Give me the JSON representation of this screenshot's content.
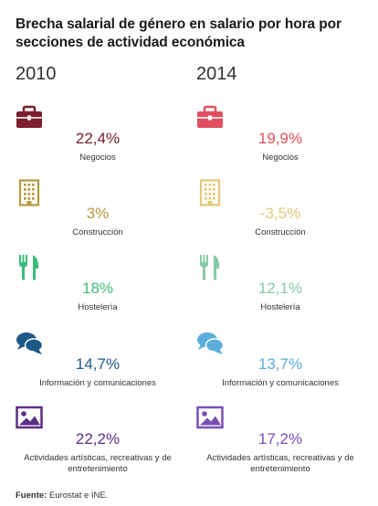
{
  "title": "Brecha salarial de género en salario por hora por secciones de actividad económica",
  "source": {
    "label": "Fuente:",
    "text": " Eurostat e INE."
  },
  "chart_data": {
    "type": "table",
    "unit": "%",
    "columns": [
      {
        "year": "2010",
        "rows": [
          {
            "sector": "Negocios",
            "value": 22.4,
            "text": "22,4%",
            "color": "#7a1f2b",
            "icon": "briefcase-icon"
          },
          {
            "sector": "Construcción",
            "value": 3,
            "text": "3%",
            "color": "#b59a3f",
            "icon": "building-icon"
          },
          {
            "sector": "Hostelería",
            "value": 18,
            "text": "18%",
            "color": "#3dbb7c",
            "icon": "fork-knife-icon"
          },
          {
            "sector": "Información y comunicaciones",
            "value": 14.7,
            "text": "14,7%",
            "color": "#1d5a85",
            "icon": "speech-bubbles-icon"
          },
          {
            "sector": "Actividades artísticas, recreativas y de entretenimiento",
            "value": 22.2,
            "text": "22,2%",
            "color": "#5b2d86",
            "icon": "image-icon"
          }
        ]
      },
      {
        "year": "2014",
        "rows": [
          {
            "sector": "Negocios",
            "value": 19.9,
            "text": "19,9%",
            "color": "#e0505f",
            "icon": "briefcase-icon"
          },
          {
            "sector": "Construcción",
            "value": -3.5,
            "text": "-3,5%",
            "color": "#e2c878",
            "icon": "building-icon"
          },
          {
            "sector": "Hostelería",
            "value": 12.1,
            "text": "12,1%",
            "color": "#86c9a6",
            "icon": "fork-knife-icon"
          },
          {
            "sector": "Información y comunicaciones",
            "value": 13.7,
            "text": "13,7%",
            "color": "#5aaedb",
            "icon": "speech-bubbles-icon"
          },
          {
            "sector": "Actividades artísticas, recreativas y de entretenimiento",
            "value": 17.2,
            "text": "17,2%",
            "color": "#7a4fb5",
            "icon": "image-icon"
          }
        ]
      }
    ]
  }
}
